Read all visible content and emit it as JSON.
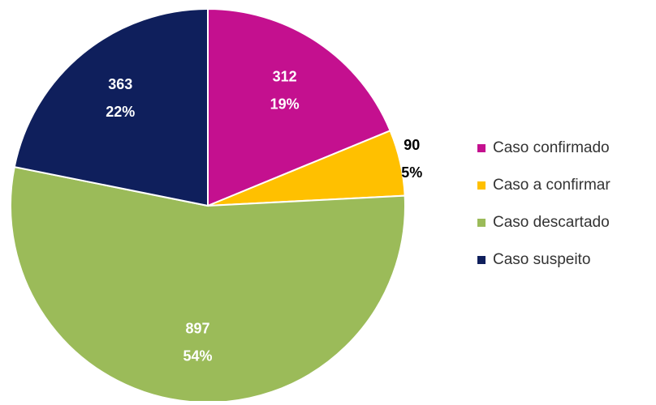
{
  "chart_data": {
    "type": "pie",
    "categories": [
      "Caso confirmado",
      "Caso a confirmar",
      "Caso descartado",
      "Caso suspeito"
    ],
    "values": [
      312,
      90,
      897,
      363
    ],
    "percent_labels": [
      "19%",
      "5%",
      "54%",
      "22%"
    ],
    "colors": [
      "#c4108f",
      "#ffc000",
      "#9bbb59",
      "#0f1f5c"
    ],
    "legend": "right"
  }
}
